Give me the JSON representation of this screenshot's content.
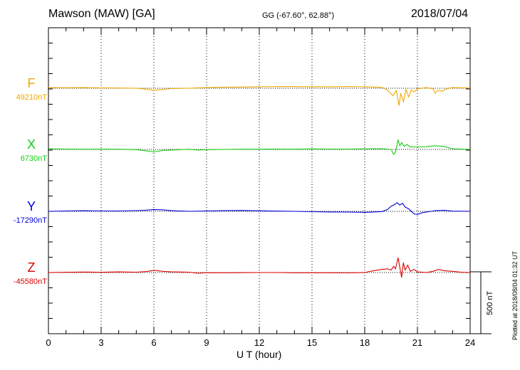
{
  "header": {
    "station": "Mawson (MAW)  [GA]",
    "coords": "GG (-67.60°,  62.88°)",
    "date": "2018/07/04"
  },
  "footer": {
    "plotted": "Plotted at 2018/08/04 01:32 UT"
  },
  "components": [
    {
      "label": "F",
      "baseline": "49210nT",
      "color": "#f0a800"
    },
    {
      "label": "X",
      "baseline": "6730nT",
      "color": "#10cc10"
    },
    {
      "label": "Y",
      "baseline": "-17290nT",
      "color": "#0000dd"
    },
    {
      "label": "Z",
      "baseline": "-45580nT",
      "color": "#dd0000"
    }
  ],
  "chart_data": {
    "type": "line",
    "title": "Mawson (MAW)  [GA]",
    "xlabel": "U T (hour)",
    "ylabel": "",
    "xlim": [
      0,
      24
    ],
    "x_ticks": [
      0,
      3,
      6,
      9,
      12,
      15,
      18,
      21,
      24
    ],
    "x_tick_labels": [
      "0",
      "3",
      "6",
      "9",
      "12",
      "15",
      "18",
      "21",
      "24"
    ],
    "scale_bar_label": "500 nT",
    "scale_bar_nT": 500,
    "grid": true,
    "series": [
      {
        "name": "F",
        "baseline_nT": 49210,
        "points": [
          [
            0,
            5
          ],
          [
            1,
            4
          ],
          [
            2,
            5
          ],
          [
            3,
            3
          ],
          [
            4,
            2
          ],
          [
            5,
            0
          ],
          [
            5.6,
            -8
          ],
          [
            6,
            -18
          ],
          [
            6.5,
            -10
          ],
          [
            7,
            -3
          ],
          [
            8,
            0
          ],
          [
            9,
            5
          ],
          [
            10,
            8
          ],
          [
            11,
            10
          ],
          [
            12,
            12
          ],
          [
            13,
            13
          ],
          [
            14,
            13
          ],
          [
            15,
            12
          ],
          [
            16,
            12
          ],
          [
            17,
            13
          ],
          [
            18,
            12
          ],
          [
            18.6,
            10
          ],
          [
            19,
            5
          ],
          [
            19.3,
            -15
          ],
          [
            19.6,
            -60
          ],
          [
            19.8,
            -20
          ],
          [
            19.95,
            -140
          ],
          [
            20.05,
            -40
          ],
          [
            20.2,
            -110
          ],
          [
            20.35,
            -10
          ],
          [
            20.5,
            -70
          ],
          [
            20.65,
            -15
          ],
          [
            20.8,
            -30
          ],
          [
            21,
            -5
          ],
          [
            21.5,
            5
          ],
          [
            21.9,
            -5
          ],
          [
            22,
            -40
          ],
          [
            22.2,
            -15
          ],
          [
            22.4,
            -25
          ],
          [
            22.6,
            -8
          ],
          [
            23,
            5
          ],
          [
            24,
            2
          ]
        ]
      },
      {
        "name": "X",
        "baseline_nT": 6730,
        "points": [
          [
            0,
            5
          ],
          [
            1,
            3
          ],
          [
            2,
            2
          ],
          [
            3,
            3
          ],
          [
            4,
            2
          ],
          [
            5,
            -2
          ],
          [
            5.6,
            -12
          ],
          [
            6,
            -20
          ],
          [
            6.5,
            -8
          ],
          [
            7,
            -5
          ],
          [
            8,
            2
          ],
          [
            8.5,
            -5
          ],
          [
            9,
            -2
          ],
          [
            10,
            0
          ],
          [
            11,
            2
          ],
          [
            12,
            2
          ],
          [
            13,
            3
          ],
          [
            14,
            2
          ],
          [
            15,
            4
          ],
          [
            16,
            3
          ],
          [
            17,
            3
          ],
          [
            18,
            4
          ],
          [
            18.5,
            5
          ],
          [
            19,
            5
          ],
          [
            19.5,
            0
          ],
          [
            19.65,
            -40
          ],
          [
            19.75,
            -20
          ],
          [
            19.9,
            75
          ],
          [
            20,
            30
          ],
          [
            20.1,
            55
          ],
          [
            20.25,
            25
          ],
          [
            20.4,
            40
          ],
          [
            20.6,
            20
          ],
          [
            21,
            20
          ],
          [
            21.5,
            22
          ],
          [
            22,
            30
          ],
          [
            22.5,
            25
          ],
          [
            23,
            5
          ],
          [
            24,
            0
          ]
        ]
      },
      {
        "name": "Y",
        "baseline_nT": -17290,
        "points": [
          [
            0,
            0
          ],
          [
            1,
            3
          ],
          [
            2,
            5
          ],
          [
            3,
            3
          ],
          [
            4,
            3
          ],
          [
            5,
            6
          ],
          [
            5.5,
            8
          ],
          [
            6,
            15
          ],
          [
            6.5,
            12
          ],
          [
            7,
            5
          ],
          [
            8,
            0
          ],
          [
            9,
            3
          ],
          [
            10,
            5
          ],
          [
            11,
            7
          ],
          [
            12,
            4
          ],
          [
            13,
            2
          ],
          [
            14,
            0
          ],
          [
            15,
            -3
          ],
          [
            16,
            -5
          ],
          [
            17,
            -6
          ],
          [
            18,
            -8
          ],
          [
            18.5,
            -5
          ],
          [
            19,
            -2
          ],
          [
            19.3,
            15
          ],
          [
            19.5,
            40
          ],
          [
            19.7,
            55
          ],
          [
            19.85,
            70
          ],
          [
            20,
            50
          ],
          [
            20.15,
            65
          ],
          [
            20.3,
            35
          ],
          [
            20.5,
            20
          ],
          [
            20.8,
            -20
          ],
          [
            21,
            -25
          ],
          [
            21.3,
            -10
          ],
          [
            21.8,
            0
          ],
          [
            22,
            5
          ],
          [
            22.5,
            8
          ],
          [
            23,
            2
          ],
          [
            24,
            0
          ]
        ]
      },
      {
        "name": "Z",
        "baseline_nT": -45580,
        "points": [
          [
            0,
            0
          ],
          [
            1,
            2
          ],
          [
            2,
            4
          ],
          [
            3,
            2
          ],
          [
            4,
            5
          ],
          [
            5,
            3
          ],
          [
            5.6,
            8
          ],
          [
            6,
            18
          ],
          [
            6.5,
            10
          ],
          [
            7,
            5
          ],
          [
            8,
            3
          ],
          [
            8.5,
            -5
          ],
          [
            9,
            -2
          ],
          [
            10,
            -2
          ],
          [
            11,
            -1
          ],
          [
            12,
            0
          ],
          [
            13,
            0
          ],
          [
            14,
            -2
          ],
          [
            15,
            -2
          ],
          [
            16,
            -2
          ],
          [
            17,
            -3
          ],
          [
            18,
            0
          ],
          [
            18.5,
            15
          ],
          [
            19,
            25
          ],
          [
            19.3,
            30
          ],
          [
            19.5,
            20
          ],
          [
            19.65,
            50
          ],
          [
            19.75,
            30
          ],
          [
            19.9,
            120
          ],
          [
            20,
            40
          ],
          [
            20.1,
            -40
          ],
          [
            20.2,
            80
          ],
          [
            20.3,
            20
          ],
          [
            20.45,
            60
          ],
          [
            20.6,
            10
          ],
          [
            20.8,
            25
          ],
          [
            21,
            5
          ],
          [
            21.5,
            0
          ],
          [
            21.9,
            10
          ],
          [
            22.2,
            25
          ],
          [
            22.5,
            15
          ],
          [
            23,
            10
          ],
          [
            23.5,
            3
          ],
          [
            24,
            0
          ]
        ]
      }
    ]
  }
}
